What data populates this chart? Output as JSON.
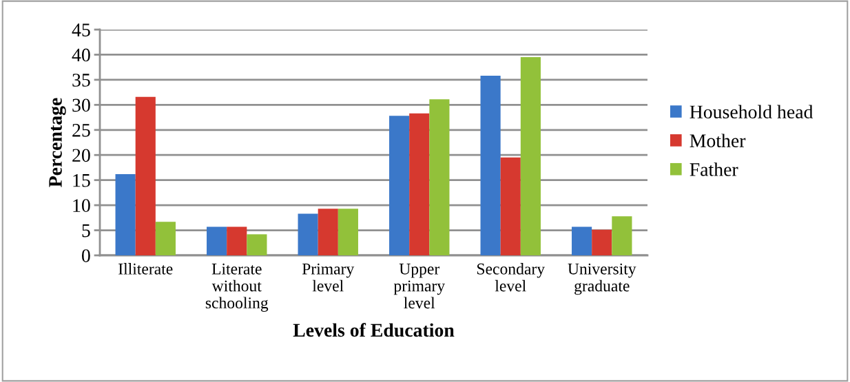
{
  "chart_data": {
    "type": "bar",
    "xlabel": "Levels of Education",
    "ylabel": "Percentage",
    "categories": [
      "Illiterate",
      "Literate\nwithout\nschooling",
      "Primary\nlevel",
      "Upper\nprimary\nlevel",
      "Secondary\nlevel",
      "University\ngraduate"
    ],
    "series": [
      {
        "name": "Household head",
        "color": "#3b78c9",
        "values": [
          16.2,
          5.7,
          8.3,
          27.8,
          35.8,
          5.7
        ]
      },
      {
        "name": "Mother",
        "color": "#d6392f",
        "values": [
          31.6,
          5.7,
          9.3,
          28.3,
          19.5,
          5.1
        ]
      },
      {
        "name": "Father",
        "color": "#92c13a",
        "values": [
          6.7,
          4.2,
          9.3,
          31.1,
          39.5,
          7.8
        ]
      }
    ],
    "ylim": [
      0,
      45
    ],
    "yticks": [
      0,
      5,
      10,
      15,
      20,
      25,
      30,
      35,
      40,
      45
    ],
    "grid": "y",
    "legend": "right"
  }
}
